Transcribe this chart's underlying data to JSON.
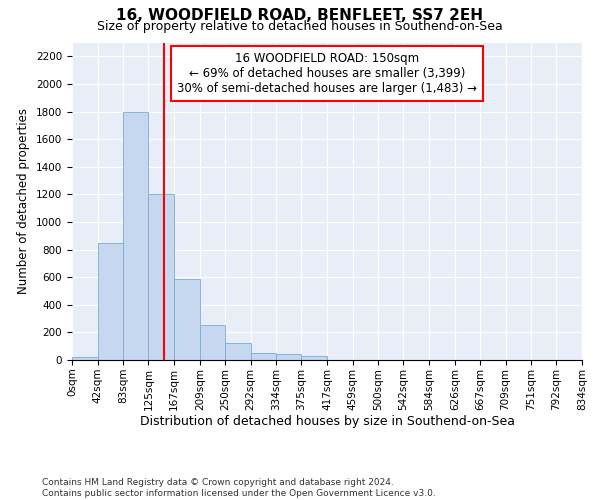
{
  "title": "16, WOODFIELD ROAD, BENFLEET, SS7 2EH",
  "subtitle": "Size of property relative to detached houses in Southend-on-Sea",
  "xlabel": "Distribution of detached houses by size in Southend-on-Sea",
  "ylabel": "Number of detached properties",
  "bar_values": [
    25,
    845,
    1800,
    1200,
    590,
    255,
    125,
    50,
    45,
    30,
    0,
    0,
    0,
    0,
    0,
    0,
    0,
    0,
    0,
    0
  ],
  "bin_edges": [
    0,
    42,
    83,
    125,
    167,
    209,
    250,
    292,
    334,
    375,
    417,
    459,
    500,
    542,
    584,
    626,
    667,
    709,
    751,
    792,
    834
  ],
  "bar_color": "#c5d8f0",
  "bar_edgecolor": "#7aadd4",
  "vline_x": 150,
  "vline_color": "red",
  "annotation_text": "16 WOODFIELD ROAD: 150sqm\n← 69% of detached houses are smaller (3,399)\n30% of semi-detached houses are larger (1,483) →",
  "annotation_box_color": "white",
  "annotation_box_edgecolor": "red",
  "ylim": [
    0,
    2300
  ],
  "yticks": [
    0,
    200,
    400,
    600,
    800,
    1000,
    1200,
    1400,
    1600,
    1800,
    2000,
    2200
  ],
  "plot_bg_color": "#e8eef8",
  "footer_text": "Contains HM Land Registry data © Crown copyright and database right 2024.\nContains public sector information licensed under the Open Government Licence v3.0.",
  "title_fontsize": 11,
  "subtitle_fontsize": 9,
  "xlabel_fontsize": 9,
  "ylabel_fontsize": 8.5,
  "tick_fontsize": 7.5,
  "annotation_fontsize": 8.5,
  "footer_fontsize": 6.5
}
